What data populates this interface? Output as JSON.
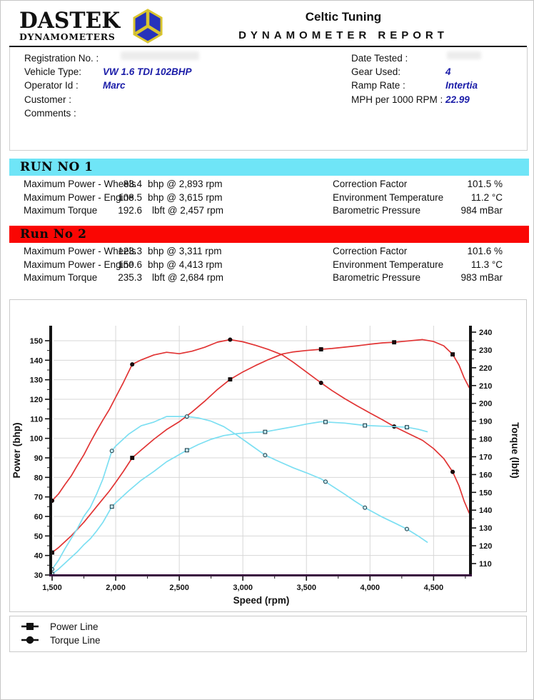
{
  "header": {
    "brand_line1": "DASTEK",
    "brand_line2": "DYNAMOMETERS",
    "title": "Celtic Tuning",
    "subtitle": "DYNAMOMETER REPORT"
  },
  "info": {
    "left": [
      {
        "label": "Registration No. :",
        "value": ""
      },
      {
        "label": "Vehicle Type:",
        "value": "VW 1.6 TDI 102BHP"
      },
      {
        "label": "Operator Id :",
        "value": "Marc"
      },
      {
        "label": "Customer :",
        "value": ""
      },
      {
        "label": "Comments :",
        "value": ""
      }
    ],
    "right": [
      {
        "label": "Date Tested :",
        "value": ""
      },
      {
        "label": "Gear Used:",
        "value": "4"
      },
      {
        "label": "Ramp Rate :",
        "value": "Intertia"
      },
      {
        "label": "MPH per 1000 RPM :",
        "value": "22.99"
      }
    ]
  },
  "colors": {
    "banner_run1": "#6fe5f7",
    "banner_run2": "#fa0603",
    "curve_run1": "#7cdff2",
    "curve_run2": "#e13434",
    "value_text": "#1a1ca8",
    "x_axis_line": "#380b3e",
    "y_axis_line": "#141414",
    "gridline": "#d7d7d7"
  },
  "runs": [
    {
      "title": "RUN NO 1",
      "banner_color": "#6fe5f7",
      "stats": [
        {
          "label": "Maximum Power - Wheels",
          "value": "83.4",
          "unit": "bhp @ 2,893 rpm"
        },
        {
          "label": "Maximum Power - Engine",
          "value": "108.5",
          "unit": "bhp @ 3,615 rpm"
        },
        {
          "label": "Maximum Torque",
          "value": "192.6",
          "unit": "lbft @ 2,457 rpm"
        }
      ],
      "env": [
        {
          "label": "Correction Factor",
          "value": "101.5 %"
        },
        {
          "label": "Environment Temperature",
          "value": "11.2 °C"
        },
        {
          "label": "Barometric Pressure",
          "value": "984 mBar"
        }
      ]
    },
    {
      "title": "Run No 2",
      "banner_color": "#fa0603",
      "stats": [
        {
          "label": "Maximum Power - Wheels",
          "value": "123.3",
          "unit": "bhp @ 3,311 rpm"
        },
        {
          "label": "Maximum Power - Engine",
          "value": "150.6",
          "unit": "bhp @ 4,413 rpm"
        },
        {
          "label": "Maximum Torque",
          "value": "235.3",
          "unit": "lbft @ 2,684 rpm"
        }
      ],
      "env": [
        {
          "label": "Correction Factor",
          "value": "101.6 %"
        },
        {
          "label": "Environment Temperature",
          "value": "11.3 °C"
        },
        {
          "label": "Barometric Pressure",
          "value": "983 mBar"
        }
      ]
    }
  ],
  "legend": [
    {
      "marker": "square",
      "label": "Power Line"
    },
    {
      "marker": "circle",
      "label": "Torque Line"
    }
  ],
  "chart_data": {
    "type": "line",
    "xlabel": "Speed (rpm)",
    "ylabel_left": "Power (bhp)",
    "ylabel_right": "Torque (lbft)",
    "x_range": [
      1500,
      4790
    ],
    "x_ticks": [
      1500,
      2000,
      2500,
      3000,
      3500,
      4000,
      4500
    ],
    "x_tick_labels": [
      "1,500",
      "2,000",
      "2,500",
      "3,000",
      "3,500",
      "4,000",
      "4,500"
    ],
    "x_minor_step": 250,
    "y_left_range": [
      30,
      150
    ],
    "y_left_ticks": [
      30,
      40,
      50,
      60,
      70,
      80,
      90,
      100,
      110,
      120,
      130,
      140,
      150
    ],
    "y_right_range": [
      110,
      240
    ],
    "y_right_ticks": [
      110,
      120,
      130,
      140,
      150,
      160,
      170,
      180,
      190,
      200,
      210,
      220,
      230,
      240
    ],
    "grid": true,
    "legend_position": "bottom-outside",
    "series": [
      {
        "name": "run2-torque",
        "run": "Run No 2",
        "axis": "right",
        "color": "#e13434",
        "marker": "circle",
        "marker_fill": "#23060a",
        "marker_stroke": "#000000",
        "marker_rpms": [
          1500,
          2130,
          2900,
          3615,
          4190,
          4650
        ],
        "points": [
          [
            1500,
            145.3
          ],
          [
            1550,
            149.1
          ],
          [
            1600,
            154.3
          ],
          [
            1650,
            159.2
          ],
          [
            1700,
            165.3
          ],
          [
            1750,
            171.1
          ],
          [
            1800,
            178.0
          ],
          [
            1850,
            184.5
          ],
          [
            1900,
            190.7
          ],
          [
            1950,
            196.6
          ],
          [
            2000,
            203.5
          ],
          [
            2060,
            211.6
          ],
          [
            2130,
            221.9
          ],
          [
            2200,
            224.4
          ],
          [
            2300,
            227.2
          ],
          [
            2400,
            228.7
          ],
          [
            2500,
            227.9
          ],
          [
            2600,
            229.3
          ],
          [
            2700,
            231.5
          ],
          [
            2800,
            234.4
          ],
          [
            2900,
            235.8
          ],
          [
            3000,
            234.6
          ],
          [
            3100,
            232.6
          ],
          [
            3200,
            230.3
          ],
          [
            3311,
            227.2
          ],
          [
            3400,
            222.9
          ],
          [
            3500,
            217.6
          ],
          [
            3615,
            211.5
          ],
          [
            3700,
            207.2
          ],
          [
            3800,
            202.7
          ],
          [
            3900,
            198.5
          ],
          [
            4000,
            194.6
          ],
          [
            4100,
            190.7
          ],
          [
            4190,
            187.0
          ],
          [
            4300,
            183.1
          ],
          [
            4413,
            179.2
          ],
          [
            4500,
            174.6
          ],
          [
            4580,
            169.0
          ],
          [
            4650,
            161.5
          ],
          [
            4700,
            153.6
          ],
          [
            4740,
            145.1
          ],
          [
            4780,
            138.4
          ]
        ]
      },
      {
        "name": "run2-power",
        "run": "Run No 2",
        "axis": "left",
        "color": "#e13434",
        "marker": "square",
        "marker_fill": "#23060a",
        "marker_stroke": "#000000",
        "marker_rpms": [
          1500,
          2130,
          2900,
          3615,
          4190,
          4650
        ],
        "points": [
          [
            1500,
            41.5
          ],
          [
            1550,
            44
          ],
          [
            1600,
            47
          ],
          [
            1650,
            50
          ],
          [
            1700,
            53.5
          ],
          [
            1750,
            57
          ],
          [
            1800,
            61
          ],
          [
            1850,
            65
          ],
          [
            1900,
            69
          ],
          [
            1950,
            73
          ],
          [
            2000,
            77.5
          ],
          [
            2060,
            83
          ],
          [
            2130,
            90
          ],
          [
            2200,
            94
          ],
          [
            2300,
            99.5
          ],
          [
            2400,
            104.5
          ],
          [
            2500,
            108.5
          ],
          [
            2600,
            113.5
          ],
          [
            2700,
            119
          ],
          [
            2800,
            125
          ],
          [
            2900,
            130.2
          ],
          [
            3000,
            134
          ],
          [
            3100,
            137.3
          ],
          [
            3200,
            140.3
          ],
          [
            3311,
            143.2
          ],
          [
            3400,
            144.3
          ],
          [
            3500,
            145
          ],
          [
            3615,
            145.6
          ],
          [
            3700,
            146
          ],
          [
            3800,
            146.7
          ],
          [
            3900,
            147.4
          ],
          [
            4000,
            148.2
          ],
          [
            4100,
            148.9
          ],
          [
            4190,
            149.2
          ],
          [
            4300,
            149.9
          ],
          [
            4413,
            150.6
          ],
          [
            4500,
            149.6
          ],
          [
            4580,
            147.4
          ],
          [
            4650,
            143
          ],
          [
            4700,
            137.5
          ],
          [
            4740,
            131
          ],
          [
            4780,
            126
          ]
        ]
      },
      {
        "name": "run1-torque",
        "run": "RUN NO 1",
        "axis": "right",
        "color": "#7cdff2",
        "marker": "circle",
        "marker_fill": "#c8eef8",
        "marker_stroke": "#123540",
        "marker_rpms": [
          1500,
          1970,
          2560,
          3175,
          3650,
          3960,
          4290
        ],
        "points": [
          [
            1500,
            106.8
          ],
          [
            1550,
            111.8
          ],
          [
            1600,
            118.2
          ],
          [
            1650,
            124.1
          ],
          [
            1700,
            129.8
          ],
          [
            1750,
            136.6
          ],
          [
            1800,
            141.5
          ],
          [
            1850,
            149.0
          ],
          [
            1900,
            157.6
          ],
          [
            1970,
            173.3
          ],
          [
            2000,
            176.0
          ],
          [
            2100,
            182.6
          ],
          [
            2200,
            187.4
          ],
          [
            2300,
            189.5
          ],
          [
            2400,
            192.6
          ],
          [
            2457,
            192.6
          ],
          [
            2560,
            192.6
          ],
          [
            2650,
            191.8
          ],
          [
            2750,
            190.0
          ],
          [
            2850,
            186.9
          ],
          [
            2950,
            182.3
          ],
          [
            3050,
            177.2
          ],
          [
            3175,
            170.9
          ],
          [
            3300,
            166.8
          ],
          [
            3400,
            163.7
          ],
          [
            3500,
            161.0
          ],
          [
            3615,
            157.6
          ],
          [
            3650,
            156.0
          ],
          [
            3700,
            153.6
          ],
          [
            3800,
            149.0
          ],
          [
            3880,
            145.1
          ],
          [
            3960,
            141.4
          ],
          [
            4100,
            136.0
          ],
          [
            4200,
            132.6
          ],
          [
            4290,
            129.4
          ],
          [
            4380,
            125.4
          ],
          [
            4450,
            122.0
          ]
        ]
      },
      {
        "name": "run1-power",
        "run": "RUN NO 1",
        "axis": "left",
        "color": "#7cdff2",
        "marker": "square",
        "marker_fill": "#c8eef8",
        "marker_stroke": "#123540",
        "marker_rpms": [
          1500,
          1970,
          2560,
          3175,
          3650,
          3960,
          4290
        ],
        "points": [
          [
            1500,
            30.5
          ],
          [
            1550,
            33
          ],
          [
            1600,
            36
          ],
          [
            1650,
            39
          ],
          [
            1700,
            42
          ],
          [
            1750,
            45.5
          ],
          [
            1800,
            48.5
          ],
          [
            1850,
            52.5
          ],
          [
            1900,
            57
          ],
          [
            1970,
            65
          ],
          [
            2000,
            67
          ],
          [
            2100,
            73
          ],
          [
            2200,
            78.5
          ],
          [
            2300,
            83
          ],
          [
            2400,
            88
          ],
          [
            2457,
            90.1
          ],
          [
            2560,
            93.9
          ],
          [
            2650,
            96.8
          ],
          [
            2750,
            99.5
          ],
          [
            2850,
            101.4
          ],
          [
            2950,
            102.4
          ],
          [
            3050,
            102.9
          ],
          [
            3175,
            103.3
          ],
          [
            3300,
            104.8
          ],
          [
            3400,
            106
          ],
          [
            3500,
            107.3
          ],
          [
            3615,
            108.5
          ],
          [
            3650,
            108.4
          ],
          [
            3700,
            108.2
          ],
          [
            3800,
            107.8
          ],
          [
            3880,
            107.2
          ],
          [
            3960,
            106.6
          ],
          [
            4100,
            106.2
          ],
          [
            4200,
            106
          ],
          [
            4290,
            105.7
          ],
          [
            4380,
            104.6
          ],
          [
            4450,
            103.4
          ]
        ]
      }
    ]
  }
}
